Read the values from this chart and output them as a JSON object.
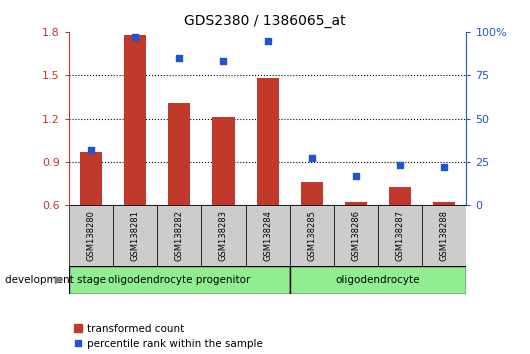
{
  "title": "GDS2380 / 1386065_at",
  "samples": [
    "GSM138280",
    "GSM138281",
    "GSM138282",
    "GSM138283",
    "GSM138284",
    "GSM138285",
    "GSM138286",
    "GSM138287",
    "GSM138288"
  ],
  "bar_values": [
    0.97,
    1.78,
    1.31,
    1.21,
    1.48,
    0.76,
    0.62,
    0.73,
    0.62
  ],
  "percentile_values": [
    32,
    97,
    85,
    83,
    95,
    27,
    17,
    23,
    22
  ],
  "ylim_left": [
    0.6,
    1.8
  ],
  "ylim_right": [
    0,
    100
  ],
  "yticks_left": [
    0.6,
    0.9,
    1.2,
    1.5,
    1.8
  ],
  "yticks_right": [
    0,
    25,
    50,
    75,
    100
  ],
  "bar_color": "#c0392b",
  "dot_color": "#2255cc",
  "group1_label": "oligodendrocyte progenitor",
  "group2_label": "oligodendrocyte",
  "group1_indices": [
    0,
    1,
    2,
    3,
    4
  ],
  "group2_indices": [
    5,
    6,
    7,
    8
  ],
  "legend_bar_label": "transformed count",
  "legend_dot_label": "percentile rank within the sample",
  "xlabel_stage": "development stage",
  "group_bg_color": "#90EE90",
  "tick_area_color": "#cccccc",
  "bar_width": 0.5,
  "figsize": [
    5.3,
    3.54
  ],
  "dpi": 100
}
